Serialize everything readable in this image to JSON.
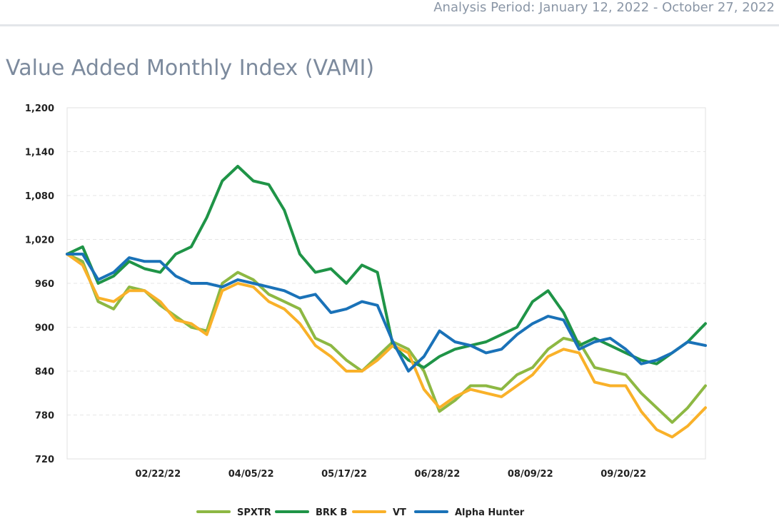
{
  "header": {
    "analysis_period": "Analysis Period: January 12, 2022 - October 27, 2022"
  },
  "chart_title": "Value Added Monthly Index (VAMI)",
  "chart_data": {
    "type": "line",
    "title": "Value Added Monthly Index (VAMI)",
    "xlabel": "",
    "ylabel": "",
    "ylim": [
      720,
      1200
    ],
    "yticks": [
      720,
      780,
      840,
      900,
      960,
      "1,020",
      "1,080",
      "1,140",
      "1,200"
    ],
    "xticks": [
      "02/22/22",
      "04/05/22",
      "05/17/22",
      "06/28/22",
      "08/09/22",
      "09/20/22"
    ],
    "x_range": [
      "01/12/22",
      "10/27/22"
    ],
    "grid": true,
    "legend_position": "bottom",
    "x": [
      "01/12/22",
      "01/19/22",
      "01/26/22",
      "02/02/22",
      "02/09/22",
      "02/16/22",
      "02/23/22",
      "03/02/22",
      "03/09/22",
      "03/16/22",
      "03/23/22",
      "03/30/22",
      "04/06/22",
      "04/13/22",
      "04/20/22",
      "04/27/22",
      "05/04/22",
      "05/11/22",
      "05/18/22",
      "05/25/22",
      "06/01/22",
      "06/08/22",
      "06/15/22",
      "06/22/22",
      "06/29/22",
      "07/06/22",
      "07/13/22",
      "07/20/22",
      "07/27/22",
      "08/03/22",
      "08/10/22",
      "08/17/22",
      "08/24/22",
      "08/31/22",
      "09/07/22",
      "09/14/22",
      "09/21/22",
      "09/28/22",
      "10/05/22",
      "10/12/22",
      "10/19/22",
      "10/27/22"
    ],
    "series": [
      {
        "name": "SPXTR",
        "color": "#8db843",
        "values": [
          1000,
          990,
          935,
          925,
          955,
          950,
          930,
          915,
          900,
          895,
          960,
          975,
          965,
          945,
          935,
          925,
          885,
          875,
          855,
          840,
          860,
          880,
          870,
          840,
          785,
          800,
          820,
          820,
          815,
          835,
          845,
          870,
          885,
          880,
          845,
          840,
          835,
          810,
          790,
          770,
          790,
          820
        ]
      },
      {
        "name": "BRK B",
        "color": "#1f9447",
        "values": [
          1000,
          1010,
          960,
          970,
          990,
          980,
          975,
          1000,
          1010,
          1050,
          1100,
          1120,
          1100,
          1095,
          1060,
          1000,
          975,
          980,
          960,
          985,
          975,
          875,
          855,
          845,
          860,
          870,
          875,
          880,
          890,
          900,
          935,
          950,
          920,
          875,
          885,
          875,
          865,
          855,
          850,
          865,
          880,
          905
        ]
      },
      {
        "name": "VT",
        "color": "#f9b129",
        "values": [
          1000,
          985,
          940,
          935,
          950,
          950,
          935,
          910,
          905,
          890,
          950,
          960,
          955,
          935,
          925,
          905,
          875,
          860,
          840,
          840,
          855,
          875,
          865,
          815,
          790,
          805,
          815,
          810,
          805,
          820,
          835,
          860,
          870,
          865,
          825,
          820,
          820,
          785,
          760,
          750,
          765,
          790
        ]
      },
      {
        "name": "Alpha Hunter",
        "color": "#1a72b8",
        "values": [
          1000,
          1000,
          965,
          975,
          995,
          990,
          990,
          970,
          960,
          960,
          955,
          965,
          960,
          955,
          950,
          940,
          945,
          920,
          925,
          935,
          930,
          880,
          840,
          860,
          895,
          880,
          875,
          865,
          870,
          890,
          905,
          915,
          910,
          870,
          880,
          885,
          870,
          850,
          855,
          865,
          880,
          875
        ]
      }
    ]
  }
}
